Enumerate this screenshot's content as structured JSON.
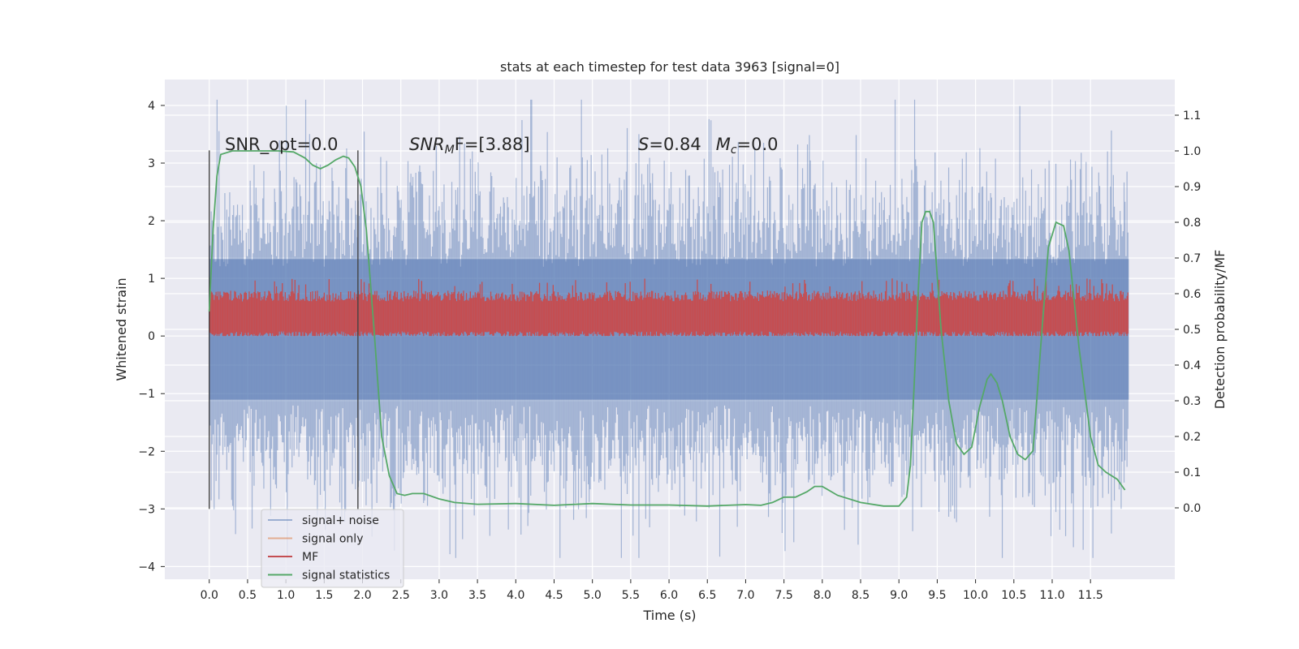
{
  "chart_data": {
    "type": "line",
    "title": "stats at each timestep for test data 3963 [signal=0]",
    "xlabel": "Time (s)",
    "ylabel": "Whitened strain",
    "y2label": "Detection probability/MF",
    "xlim": [
      -0.58,
      12.6
    ],
    "ylim": [
      -4.22,
      4.45
    ],
    "y2lim": [
      -0.2,
      1.2
    ],
    "x_ticks": [
      0.0,
      0.5,
      1.0,
      1.5,
      2.0,
      2.5,
      3.0,
      3.5,
      4.0,
      4.5,
      5.0,
      5.5,
      6.0,
      6.5,
      7.0,
      7.5,
      8.0,
      8.5,
      9.0,
      9.5,
      10.0,
      10.5,
      11.0,
      11.5
    ],
    "x_tick_labels": [
      "0.0",
      "0.5",
      "1.0",
      "1.5",
      "2.0",
      "2.5",
      "3.0",
      "3.5",
      "4.0",
      "4.5",
      "5.0",
      "5.5",
      "6.0",
      "6.5",
      "7.0",
      "7.5",
      "8.0",
      "8.5",
      "9.0",
      "9.5",
      "10.0",
      "10.5",
      "11.0",
      "11.5"
    ],
    "y_ticks": [
      4,
      3,
      2,
      1,
      0,
      -1,
      -2,
      -3,
      -4
    ],
    "y_tick_labels": [
      "4",
      "3",
      "2",
      "1",
      "0",
      "−1",
      "−2",
      "−3",
      "−4"
    ],
    "y2_ticks": [
      1.1,
      1.0,
      0.9,
      0.8,
      0.7,
      0.6,
      0.5,
      0.4,
      0.3,
      0.2,
      0.1,
      0.0
    ],
    "y2_tick_labels": [
      "1.1",
      "1.0",
      "0.9",
      "0.8",
      "0.7",
      "0.6",
      "0.5",
      "0.4",
      "0.3",
      "0.2",
      "0.1",
      "0.0"
    ],
    "grid": true,
    "legend_position": "bottom-left",
    "legend": [
      {
        "label": "signal+ noise",
        "color": "#4c72b0",
        "alpha": 0.5
      },
      {
        "label": "signal only",
        "color": "#dd8452",
        "alpha": 0.6
      },
      {
        "label": "MF",
        "color": "#c44e52",
        "alpha": 1
      },
      {
        "label": "signal statistics",
        "color": "#55a868",
        "alpha": 1
      }
    ],
    "annotations": {
      "snr_opt": "SNR_opt=0.0",
      "snr_mf_base": "SNR",
      "snr_mf_sub": "M",
      "snr_mf_rest": "F=[3.88]",
      "s_symbol": "S",
      "s_value": "=0.84",
      "mc_base": "M",
      "mc_sub": "c",
      "mc_value": "=0.0"
    },
    "vlines_x": [
      0.0,
      1.94
    ],
    "vlines_yrange": [
      -3.0,
      3.22
    ],
    "series": [
      {
        "name": "signal+ noise",
        "axis": "left",
        "kind": "noise",
        "x_range": [
          0.0,
          12.0
        ],
        "typical_envelope": [
          -2.3,
          2.3
        ],
        "extreme_range": [
          -3.85,
          4.1
        ]
      },
      {
        "name": "MF",
        "axis": "left",
        "kind": "noise",
        "x_range": [
          0.0,
          12.0
        ],
        "typical_envelope": [
          0.0,
          0.75
        ],
        "extreme_range": [
          0.0,
          1.0
        ]
      },
      {
        "name": "signal statistics",
        "axis": "right",
        "kind": "curve",
        "x": [
          0.0,
          0.05,
          0.1,
          0.15,
          0.3,
          0.6,
          0.9,
          1.1,
          1.25,
          1.35,
          1.45,
          1.55,
          1.65,
          1.75,
          1.82,
          1.9,
          1.98,
          2.05,
          2.15,
          2.25,
          2.35,
          2.45,
          2.55,
          2.65,
          2.8,
          3.0,
          3.2,
          3.5,
          4.0,
          4.5,
          5.0,
          5.5,
          6.0,
          6.5,
          7.0,
          7.2,
          7.35,
          7.5,
          7.65,
          7.8,
          7.9,
          8.0,
          8.2,
          8.5,
          8.8,
          9.0,
          9.1,
          9.15,
          9.2,
          9.25,
          9.3,
          9.35,
          9.4,
          9.45,
          9.5,
          9.55,
          9.65,
          9.75,
          9.85,
          9.95,
          10.05,
          10.15,
          10.2,
          10.28,
          10.35,
          10.45,
          10.55,
          10.65,
          10.75,
          10.85,
          10.95,
          11.05,
          11.15,
          11.22,
          11.35,
          11.5,
          11.6,
          11.7,
          11.85,
          11.95
        ],
        "y": [
          0.55,
          0.78,
          0.93,
          0.99,
          1.0,
          1.0,
          1.0,
          0.997,
          0.98,
          0.96,
          0.95,
          0.96,
          0.975,
          0.985,
          0.98,
          0.955,
          0.9,
          0.78,
          0.5,
          0.2,
          0.09,
          0.04,
          0.035,
          0.04,
          0.04,
          0.025,
          0.015,
          0.01,
          0.012,
          0.007,
          0.012,
          0.008,
          0.008,
          0.005,
          0.009,
          0.007,
          0.015,
          0.03,
          0.03,
          0.045,
          0.06,
          0.06,
          0.035,
          0.015,
          0.005,
          0.005,
          0.03,
          0.12,
          0.35,
          0.6,
          0.8,
          0.83,
          0.83,
          0.8,
          0.65,
          0.5,
          0.3,
          0.18,
          0.15,
          0.17,
          0.28,
          0.36,
          0.375,
          0.35,
          0.3,
          0.2,
          0.15,
          0.135,
          0.16,
          0.45,
          0.73,
          0.8,
          0.79,
          0.72,
          0.45,
          0.2,
          0.12,
          0.1,
          0.08,
          0.05
        ]
      }
    ]
  }
}
